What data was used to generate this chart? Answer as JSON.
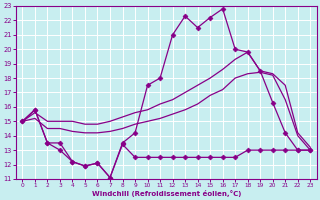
{
  "xlabel": "Windchill (Refroidissement éolien,°C)",
  "background_color": "#c8eef0",
  "grid_color": "#ffffff",
  "line_color": "#880088",
  "xlim": [
    -0.5,
    23.5
  ],
  "ylim": [
    11,
    23
  ],
  "xticks": [
    0,
    1,
    2,
    3,
    4,
    5,
    6,
    7,
    8,
    9,
    10,
    11,
    12,
    13,
    14,
    15,
    16,
    17,
    18,
    19,
    20,
    21,
    22,
    23
  ],
  "yticks": [
    11,
    12,
    13,
    14,
    15,
    16,
    17,
    18,
    19,
    20,
    21,
    22,
    23
  ],
  "series": [
    {
      "x": [
        0,
        1,
        2,
        3,
        4,
        5,
        6,
        7,
        8,
        9,
        10,
        11,
        12,
        13,
        14,
        15,
        16,
        17,
        18,
        19,
        20,
        21,
        22,
        23
      ],
      "y": [
        15.0,
        15.8,
        13.5,
        13.5,
        12.2,
        11.9,
        12.1,
        11.1,
        13.5,
        14.2,
        17.5,
        18.0,
        21.0,
        22.3,
        21.5,
        22.2,
        22.8,
        20.0,
        19.8,
        18.5,
        16.3,
        14.2,
        13.0,
        13.0
      ],
      "marker": "D",
      "markersize": 2.5,
      "linewidth": 0.9
    },
    {
      "x": [
        0,
        1,
        2,
        3,
        4,
        5,
        6,
        7,
        8,
        9,
        10,
        11,
        12,
        13,
        14,
        15,
        16,
        17,
        18,
        19,
        20,
        21,
        22,
        23
      ],
      "y": [
        15.0,
        15.8,
        13.5,
        13.0,
        12.2,
        11.9,
        12.1,
        11.1,
        13.4,
        12.5,
        12.5,
        12.5,
        12.5,
        12.5,
        12.5,
        12.5,
        12.5,
        12.5,
        13.0,
        13.0,
        13.0,
        13.0,
        13.0,
        13.0
      ],
      "marker": "D",
      "markersize": 2.5,
      "linewidth": 0.9
    },
    {
      "x": [
        0,
        1,
        2,
        3,
        4,
        5,
        6,
        7,
        8,
        9,
        10,
        11,
        12,
        13,
        14,
        15,
        16,
        17,
        18,
        19,
        20,
        21,
        22,
        23
      ],
      "y": [
        15.0,
        15.6,
        15.0,
        15.0,
        15.0,
        14.8,
        14.8,
        15.0,
        15.3,
        15.6,
        15.8,
        16.2,
        16.5,
        17.0,
        17.5,
        18.0,
        18.6,
        19.3,
        19.8,
        18.5,
        18.3,
        17.5,
        14.2,
        13.2
      ],
      "marker": null,
      "markersize": 0,
      "linewidth": 0.9
    },
    {
      "x": [
        0,
        1,
        2,
        3,
        4,
        5,
        6,
        7,
        8,
        9,
        10,
        11,
        12,
        13,
        14,
        15,
        16,
        17,
        18,
        19,
        20,
        21,
        22,
        23
      ],
      "y": [
        15.0,
        15.2,
        14.5,
        14.5,
        14.3,
        14.2,
        14.2,
        14.3,
        14.5,
        14.8,
        15.0,
        15.2,
        15.5,
        15.8,
        16.2,
        16.8,
        17.2,
        18.0,
        18.3,
        18.4,
        18.2,
        16.5,
        14.0,
        13.0
      ],
      "marker": null,
      "markersize": 0,
      "linewidth": 0.9
    }
  ]
}
